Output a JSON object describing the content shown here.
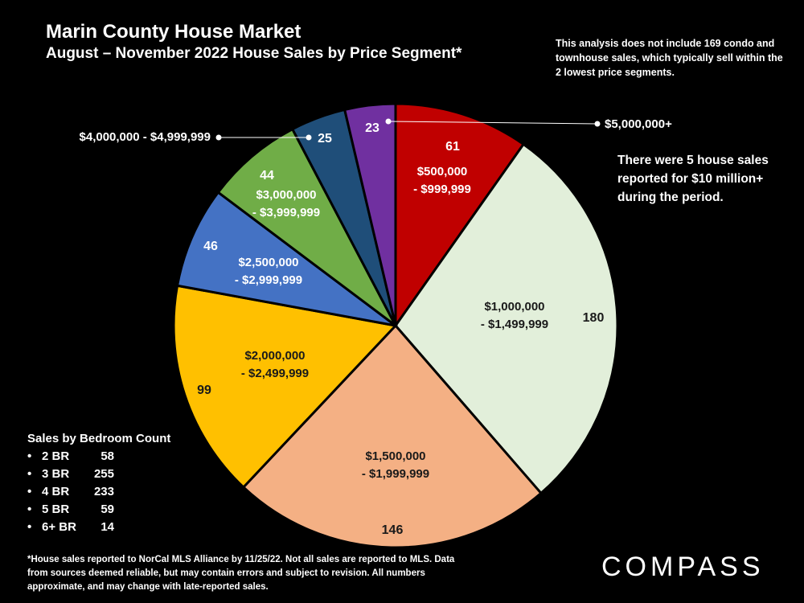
{
  "header": {
    "title": "Marin County House Market",
    "subtitle_bold_left": "August",
    "subtitle_rest": " – November 2022 House Sales by Price Segment*"
  },
  "notes": {
    "condo_note": "This analysis does not include 169 condo and townhouse sales, which typically sell within the 2 lowest price segments.",
    "ten_million_note": "There were 5 house sales reported for $10 million+ during the period."
  },
  "chart_data": {
    "type": "pie",
    "title": "",
    "slices": [
      {
        "label_line1": "$500,000",
        "label_line2": "- $999,999",
        "value": 61,
        "color": "#c00000",
        "text_color": "#ffffff"
      },
      {
        "label_line1": "$1,000,000",
        "label_line2": "- $1,499,999",
        "value": 180,
        "color": "#e2efda",
        "text_color": "#1a1a1a"
      },
      {
        "label_line1": "$1,500,000",
        "label_line2": "- $1,999,999",
        "value": 146,
        "color": "#f4b084",
        "text_color": "#1a1a1a"
      },
      {
        "label_line1": "$2,000,000",
        "label_line2": "- $2,499,999",
        "value": 99,
        "color": "#ffc000",
        "text_color": "#1a1a1a"
      },
      {
        "label_line1": "$2,500,000",
        "label_line2": "- $2,999,999",
        "value": 46,
        "color": "#4472c4",
        "text_color": "#ffffff"
      },
      {
        "label_line1": "$3,000,000",
        "label_line2": "- $3,999,999",
        "value": 44,
        "color": "#70ad47",
        "text_color": "#ffffff"
      },
      {
        "label_line1": "$4,000,000 - $4,999,999",
        "label_line2": "",
        "value": 25,
        "color": "#1f4e79",
        "text_color": "#ffffff"
      },
      {
        "label_line1": "$5,000,000+",
        "label_line2": "",
        "value": 23,
        "color": "#7030a0",
        "text_color": "#ffffff"
      }
    ]
  },
  "bedrooms": {
    "title": "Sales by Bedroom Count",
    "items": [
      {
        "label": "2 BR",
        "value": "58"
      },
      {
        "label": "3 BR",
        "value": "255"
      },
      {
        "label": "4 BR",
        "value": "233"
      },
      {
        "label": "5 BR",
        "value": "59"
      },
      {
        "label": "6+ BR",
        "value": "14"
      }
    ]
  },
  "footnote": "*House sales reported to NorCal MLS Alliance by 11/25/22. Not all sales are reported to MLS. Data from sources deemed reliable, but may contain errors and subject to revision. All numbers approximate, and may change with late-reported sales.",
  "logo": {
    "text": "COMPASS"
  }
}
